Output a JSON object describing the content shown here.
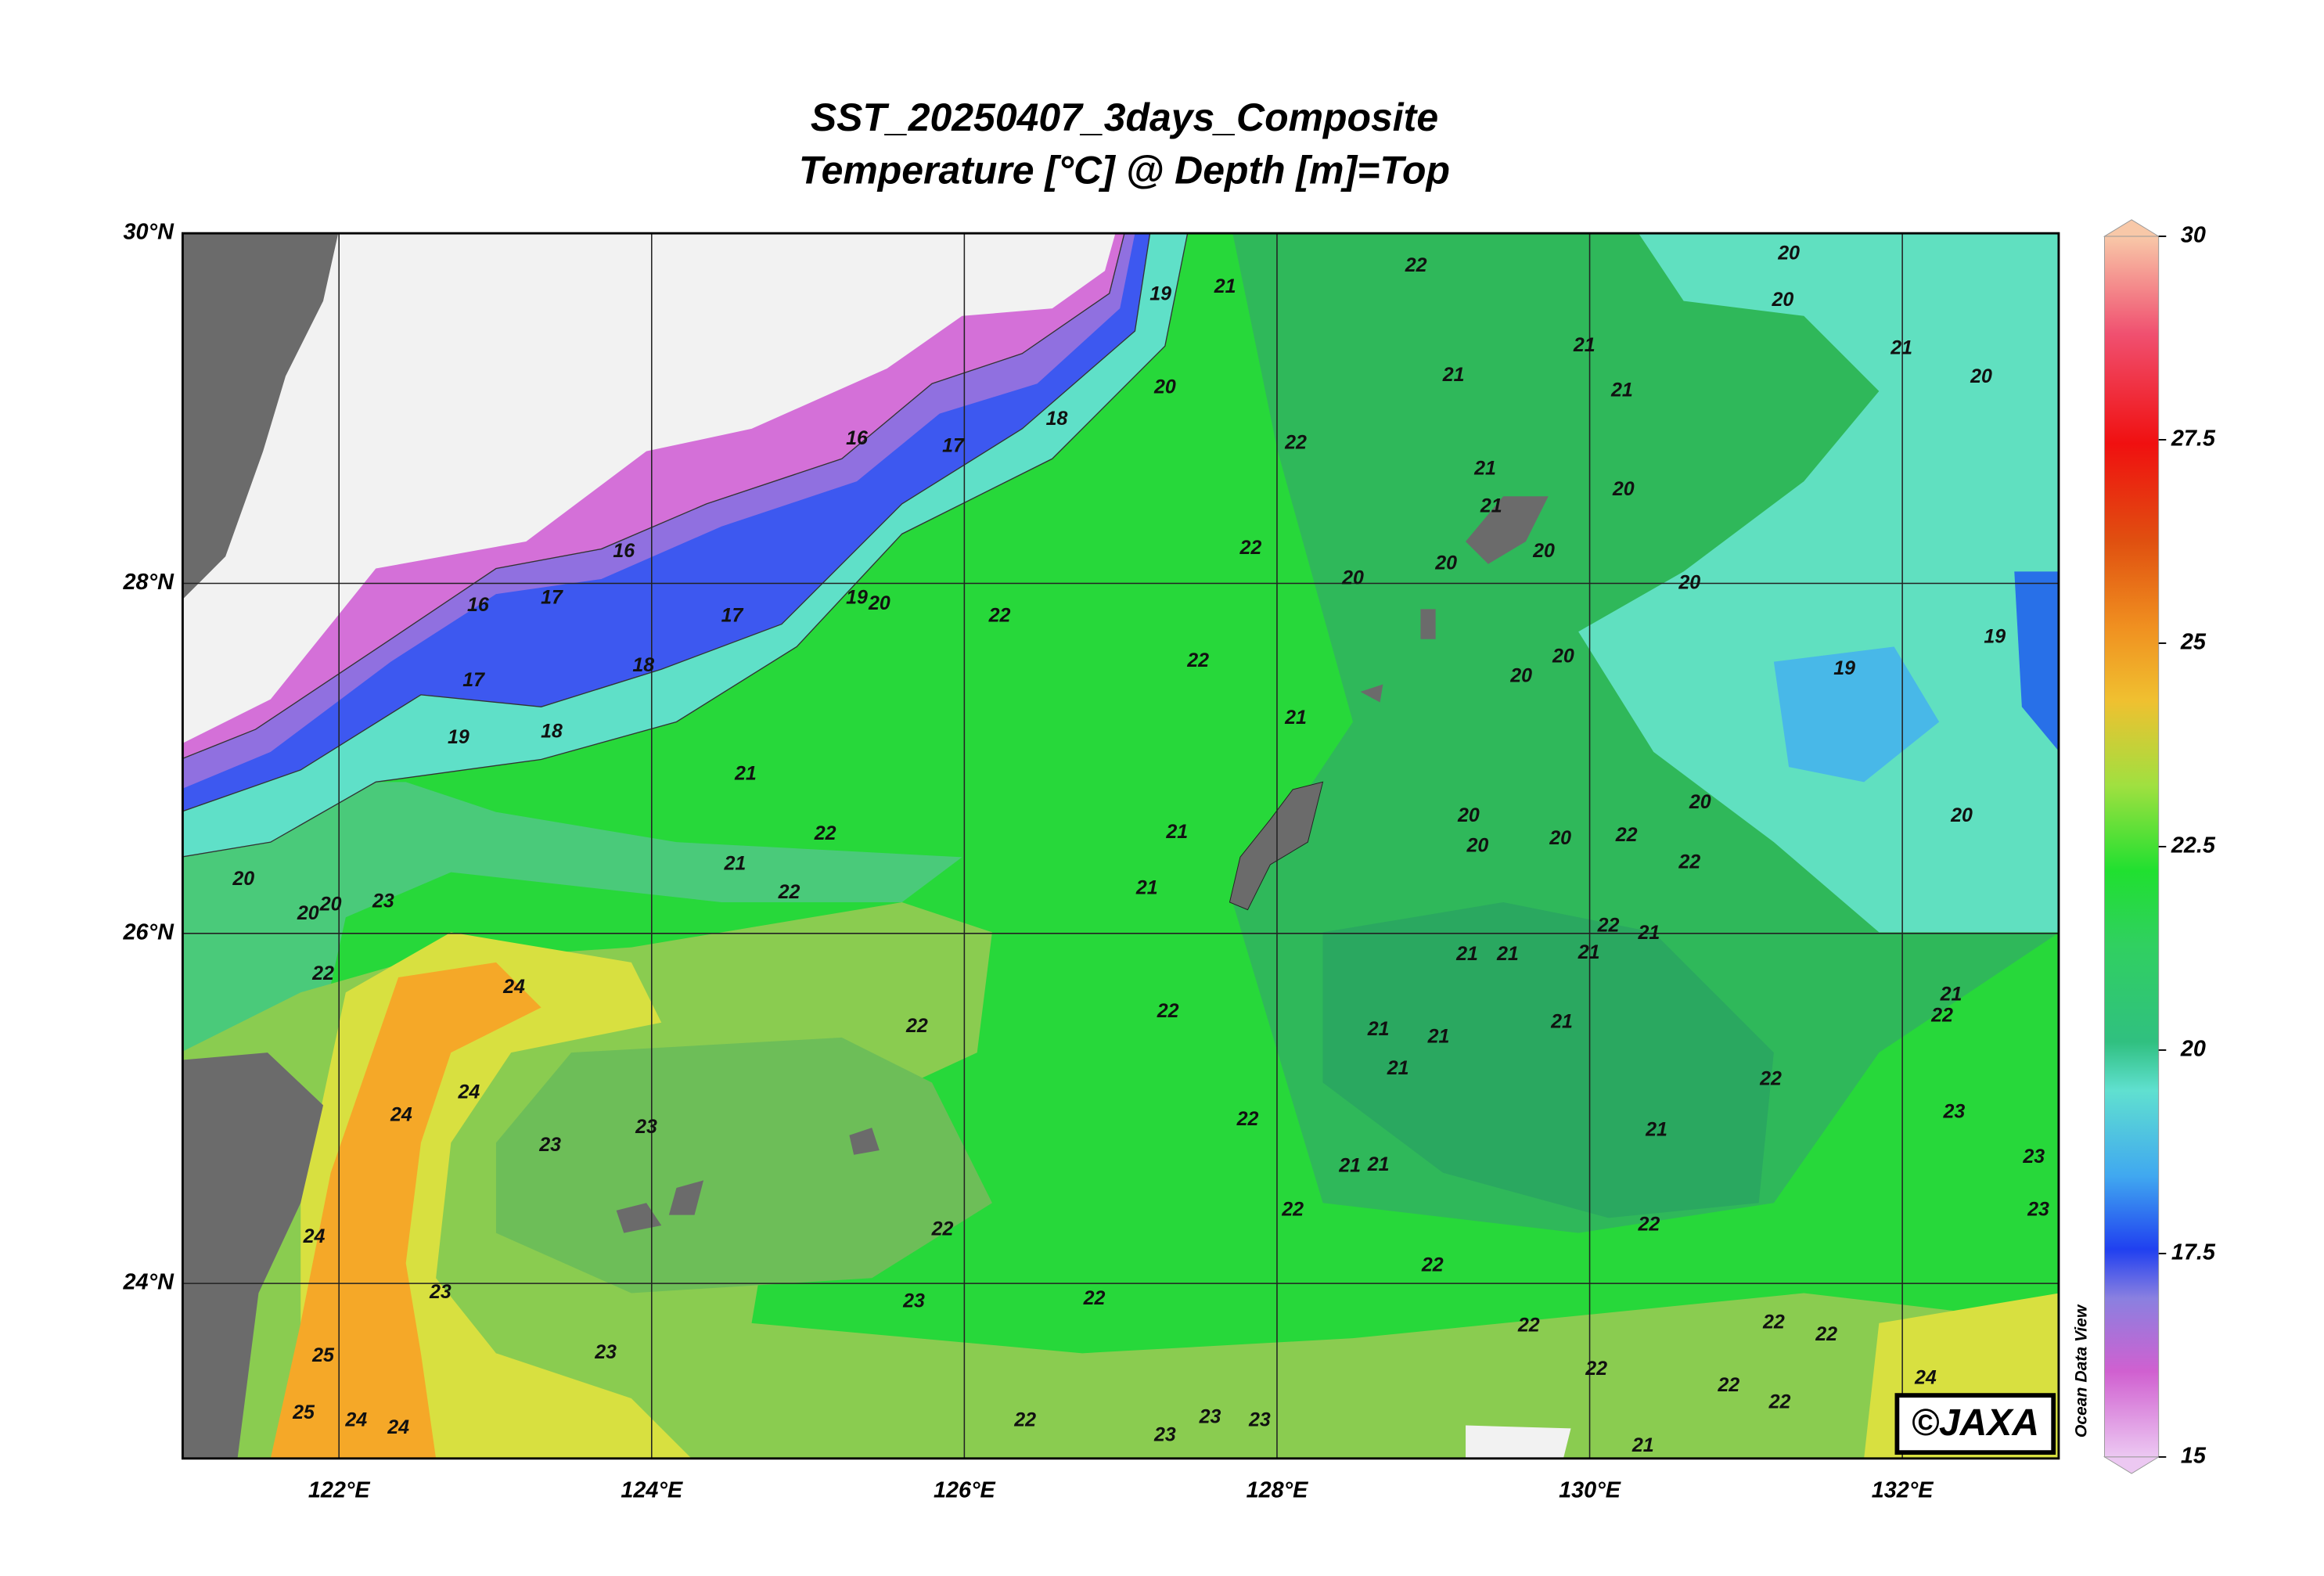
{
  "header": {
    "title": "SST_20250407_3days_Composite",
    "subtitle": "Temperature [°C] @ Depth [m]=Top"
  },
  "map": {
    "xlim": [
      121,
      133
    ],
    "ylim": [
      23,
      30
    ],
    "lat_ticks": [
      {
        "value": 30,
        "label": "30°N"
      },
      {
        "value": 28,
        "label": "28°N"
      },
      {
        "value": 26,
        "label": "26°N"
      },
      {
        "value": 24,
        "label": "24°N"
      }
    ],
    "lon_ticks": [
      {
        "value": 122,
        "label": "122°E"
      },
      {
        "value": 124,
        "label": "124°E"
      },
      {
        "value": 126,
        "label": "126°E"
      },
      {
        "value": 128,
        "label": "128°E"
      },
      {
        "value": 130,
        "label": "130°E"
      },
      {
        "value": 132,
        "label": "132°E"
      }
    ],
    "contour_labels": [
      16,
      17,
      18,
      16,
      17,
      16,
      17,
      18,
      17,
      18,
      19,
      19,
      20,
      19,
      20,
      21,
      22,
      21,
      21,
      21,
      22,
      21,
      21,
      20,
      22,
      20,
      20,
      20,
      20,
      20,
      20,
      21,
      20,
      22,
      22,
      20,
      20,
      19,
      19,
      21,
      21,
      22,
      21,
      22,
      21,
      21,
      20,
      20,
      20,
      20,
      20,
      22,
      22,
      20,
      20,
      20,
      23,
      22,
      24,
      21,
      21,
      21,
      22,
      21,
      22,
      22,
      21,
      21,
      21,
      21,
      21,
      22,
      24,
      24,
      23,
      23,
      22,
      21,
      21,
      21,
      22,
      23,
      23,
      23,
      22,
      22,
      22,
      22,
      23,
      23,
      22,
      22,
      22,
      22,
      24,
      25,
      23,
      22,
      22,
      22,
      24,
      25,
      24,
      24,
      22,
      23,
      23,
      23,
      21
    ],
    "credit": "©JAXA",
    "software": "Ocean Data View"
  },
  "colorbar": {
    "range": [
      15,
      30
    ],
    "ticks": [
      15,
      17.5,
      20,
      22.5,
      25,
      27.5,
      30
    ]
  }
}
